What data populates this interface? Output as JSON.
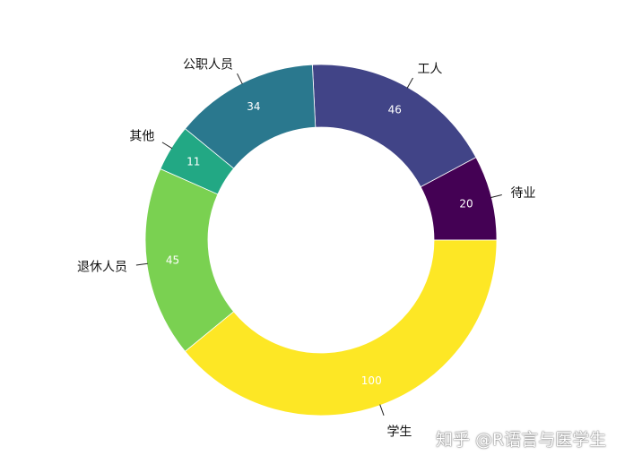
{
  "chart_data": {
    "type": "pie",
    "subtype": "donut",
    "start": "12 o'clock",
    "direction": "counter-clockwise from 待业, 工人 ... then 学生 at bottom",
    "categories": [
      "待业",
      "工人",
      "公职人员",
      "其他",
      "退休人员",
      "学生"
    ],
    "values": [
      20,
      46,
      34,
      11,
      45,
      100
    ],
    "colors": [
      "#440154",
      "#414487",
      "#2A788E",
      "#22A884",
      "#7AD151",
      "#FDE725"
    ],
    "title": "",
    "legend": "none"
  },
  "watermark": "知乎 @R语言与医学生"
}
